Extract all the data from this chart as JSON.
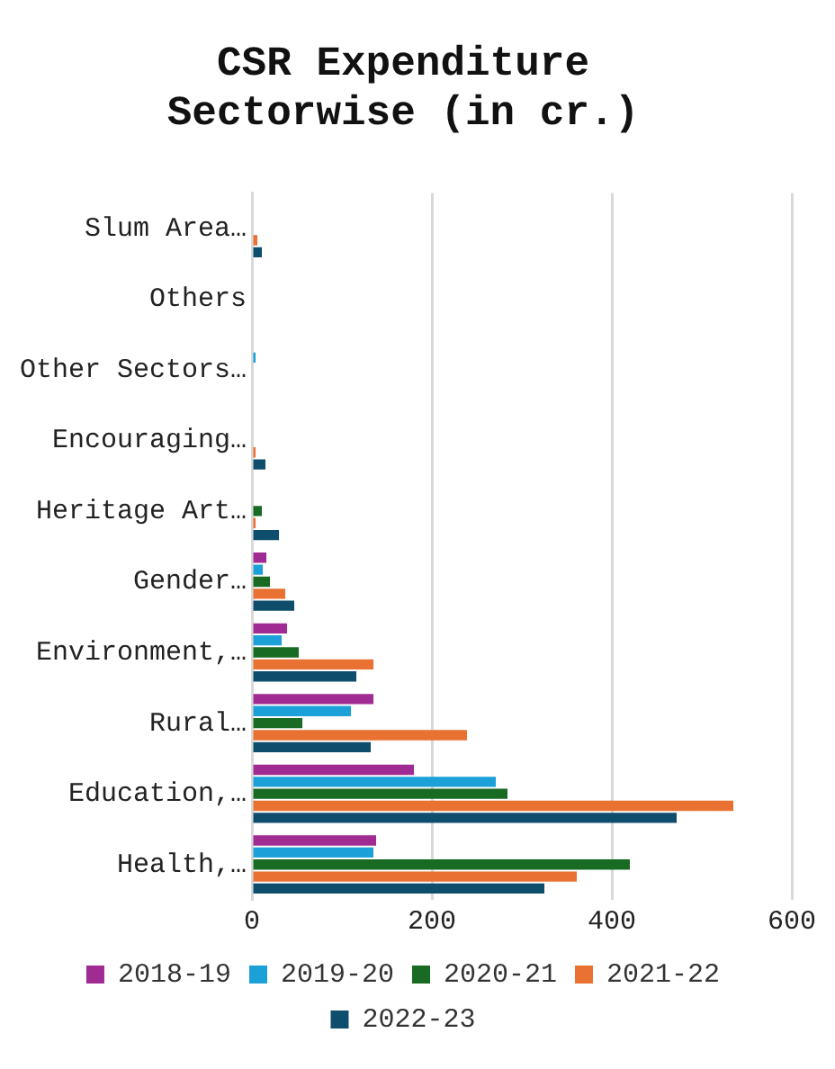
{
  "chart_data": {
    "type": "bar",
    "orientation": "horizontal",
    "title": "CSR Expenditure Sectorwise (in cr.)",
    "categories": [
      "Slum Area…",
      "Others",
      "Other Sectors…",
      "Encouraging…",
      "Heritage Art…",
      "Gender…",
      "Environment,…",
      "Rural…",
      "Education,…",
      "Health,…"
    ],
    "series": [
      {
        "name": "2018-19",
        "color": "#a02b93",
        "values": [
          0,
          0,
          0,
          0,
          0,
          16,
          39,
          135,
          180,
          138
        ]
      },
      {
        "name": "2019-20",
        "color": "#1ba1d8",
        "values": [
          0,
          0,
          4,
          0,
          0,
          12,
          33,
          110,
          271,
          135
        ]
      },
      {
        "name": "2020-21",
        "color": "#196b24",
        "values": [
          0,
          0,
          0,
          0,
          11,
          20,
          52,
          56,
          284,
          420
        ]
      },
      {
        "name": "2021-22",
        "color": "#e97132",
        "values": [
          6,
          0,
          0,
          4,
          4,
          37,
          135,
          239,
          535,
          361
        ]
      },
      {
        "name": "2022-23",
        "color": "#0f4d6d",
        "values": [
          11,
          0,
          0,
          15,
          30,
          47,
          116,
          132,
          472,
          325
        ]
      }
    ],
    "xlim": [
      0,
      600
    ],
    "xticks": [
      0,
      200,
      400,
      600
    ],
    "grid": "x",
    "legend": "bottom"
  }
}
